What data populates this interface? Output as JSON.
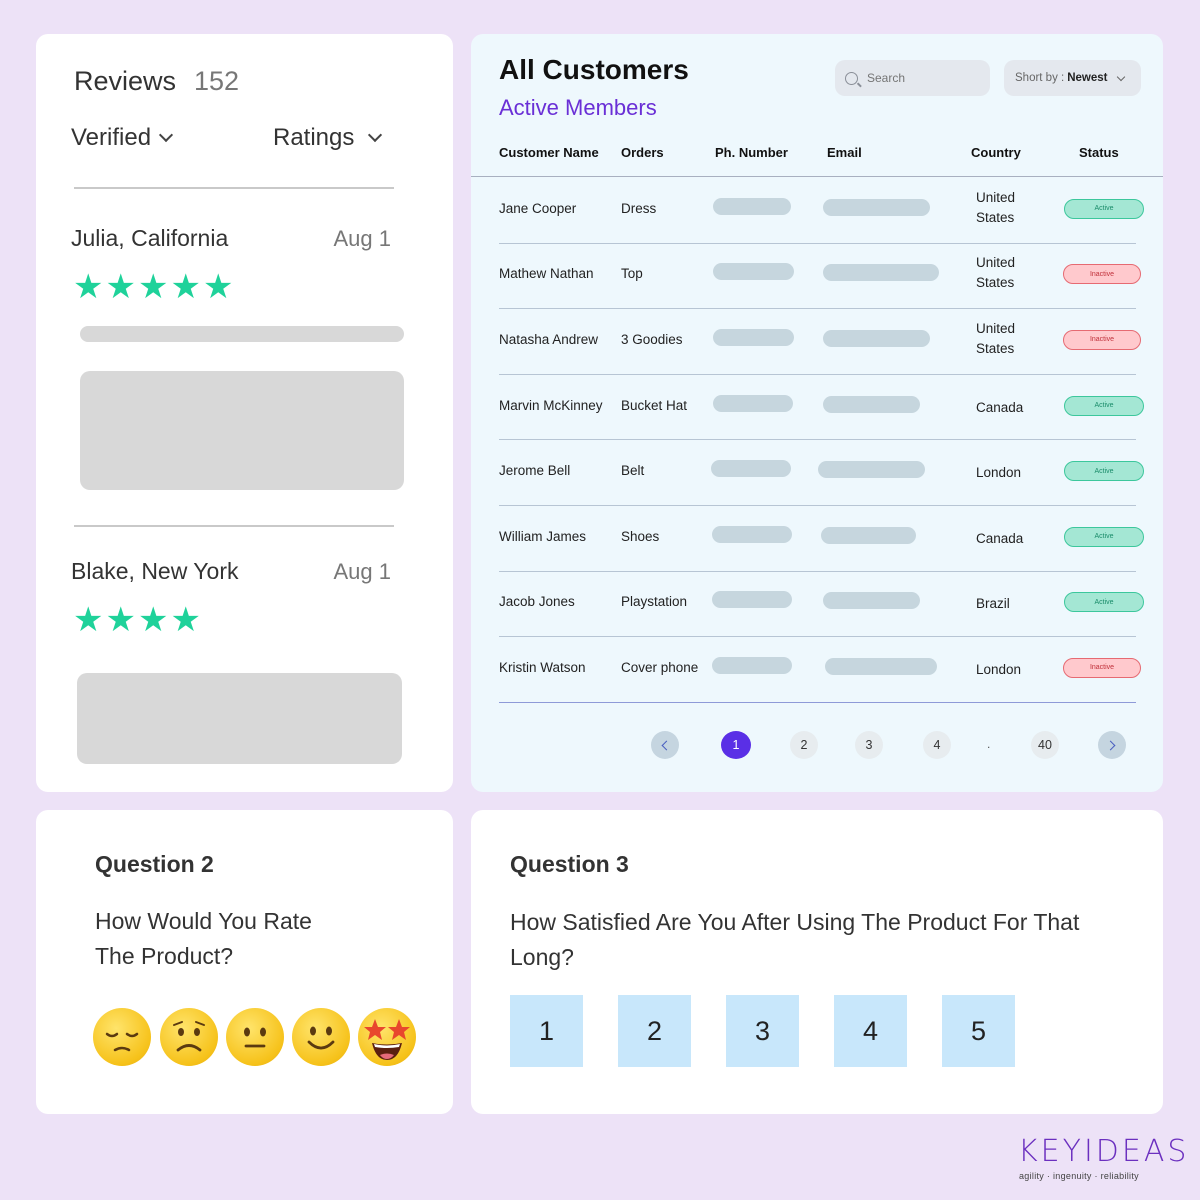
{
  "reviews": {
    "title": "Reviews",
    "count": "152",
    "filter_verified": "Verified",
    "filter_ratings": "Ratings",
    "items": [
      {
        "name": "Julia, California",
        "date": "Aug 1",
        "stars": 5
      },
      {
        "name": "Blake, New York",
        "date": "Aug 1",
        "stars": 4
      }
    ]
  },
  "customers": {
    "title": "All Customers",
    "subtitle": "Active Members",
    "search_placeholder": "Search",
    "sort_prefix": "Short by :",
    "sort_value": "Newest",
    "columns": [
      "Customer Name",
      "Orders",
      "Ph. Number",
      "Email",
      "Country",
      "Status"
    ],
    "rows": [
      {
        "name": "Jane Cooper",
        "order": "Dress",
        "country": "United States",
        "status": "Active"
      },
      {
        "name": "Mathew Nathan",
        "order": "Top",
        "country": "United States",
        "status": "Inactive"
      },
      {
        "name": "Natasha Andrew",
        "order": "3 Goodies",
        "country": "United States",
        "status": "Inactive"
      },
      {
        "name": "Marvin McKinney",
        "order": "Bucket Hat",
        "country": "Canada",
        "status": "Active"
      },
      {
        "name": "Jerome Bell",
        "order": "Belt",
        "country": "London",
        "status": "Active"
      },
      {
        "name": "William James",
        "order": "Shoes",
        "country": "Canada",
        "status": "Active"
      },
      {
        "name": "Jacob Jones",
        "order": "Playstation",
        "country": "Brazil",
        "status": "Active"
      },
      {
        "name": "Kristin Watson",
        "order": "Cover phone",
        "country": "London",
        "status": "Inactive"
      }
    ],
    "pagination": [
      "1",
      "2",
      "3",
      "4",
      "40"
    ],
    "current_page": "1",
    "pagination_ellipsis": "."
  },
  "question2": {
    "label": "Question 2",
    "text": "How Would You Rate The Product?",
    "options": [
      "pensive-face-icon",
      "frowning-face-icon",
      "neutral-face-icon",
      "smiling-face-icon",
      "star-struck-face-icon"
    ]
  },
  "question3": {
    "label": "Question 3",
    "text": "How Satisfied Are You After Using The Product For That Long?",
    "options": [
      "1",
      "2",
      "3",
      "4",
      "5"
    ]
  },
  "brand": {
    "logo": "KEYIDEAS",
    "tagline": "agility  ·  ingenuity  ·  reliability"
  },
  "colors": {
    "background": "#ede2f7",
    "accent": "#5a2fe6",
    "star": "#1fd29a",
    "active": "#a4e7d4",
    "inactive": "#ffc9cd"
  }
}
